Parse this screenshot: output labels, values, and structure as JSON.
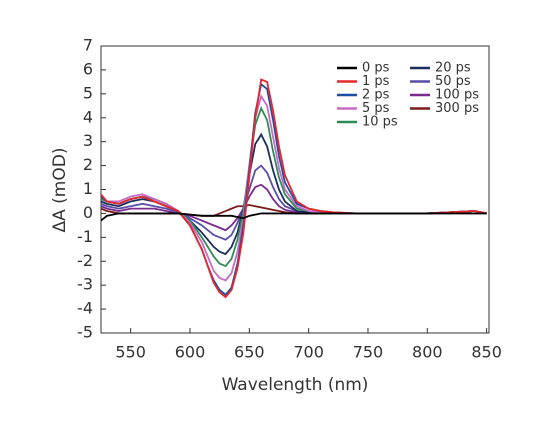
{
  "chart_data": {
    "type": "line",
    "x_label": "Wavelength (nm)",
    "y_label": "ΔA (mOD)",
    "xlim": [
      525,
      852
    ],
    "ylim": [
      -5,
      7
    ],
    "xticks": [
      550,
      600,
      650,
      700,
      750,
      800,
      850
    ],
    "yticks": [
      -5,
      -4,
      -3,
      -2,
      -1,
      0,
      1,
      2,
      3,
      4,
      5,
      6,
      7
    ],
    "legend": "upper right",
    "x": [
      525,
      530,
      540,
      550,
      560,
      570,
      580,
      590,
      600,
      610,
      615,
      620,
      625,
      630,
      635,
      640,
      645,
      650,
      655,
      660,
      665,
      670,
      675,
      680,
      690,
      700,
      710,
      720,
      740,
      760,
      780,
      800,
      820,
      840,
      850
    ],
    "series": [
      {
        "name": "0 ps",
        "color": "#000000",
        "values": [
          -0.3,
          -0.1,
          0,
          0,
          0,
          0,
          0,
          0,
          -0.05,
          -0.1,
          -0.1,
          -0.1,
          -0.1,
          -0.1,
          -0.1,
          -0.15,
          -0.2,
          -0.1,
          -0.05,
          0,
          0,
          0,
          0,
          0,
          0,
          0,
          0,
          0,
          0,
          0,
          0,
          0,
          0,
          0,
          0
        ]
      },
      {
        "name": "1 ps",
        "color": "#e8262b",
        "values": [
          0.8,
          0.5,
          0.4,
          0.6,
          0.7,
          0.5,
          0.3,
          0.1,
          -0.5,
          -1.5,
          -2.2,
          -2.9,
          -3.3,
          -3.5,
          -3.2,
          -2.3,
          -0.8,
          1.5,
          4.0,
          5.6,
          5.5,
          4.3,
          2.8,
          1.6,
          0.5,
          0.2,
          0.1,
          0.05,
          0,
          0,
          0,
          0,
          0.05,
          0.1,
          0
        ]
      },
      {
        "name": "2 ps",
        "color": "#1f4fa3",
        "values": [
          0.7,
          0.5,
          0.4,
          0.6,
          0.7,
          0.5,
          0.3,
          0.1,
          -0.5,
          -1.5,
          -2.2,
          -2.8,
          -3.2,
          -3.4,
          -3.1,
          -2.1,
          -0.5,
          1.8,
          4.2,
          5.4,
          5.2,
          3.9,
          2.4,
          1.3,
          0.4,
          0.2,
          0.1,
          0.05,
          0,
          0,
          0,
          0,
          0.05,
          0.1,
          0
        ]
      },
      {
        "name": "5 ps",
        "color": "#c86bc4",
        "values": [
          0.7,
          0.5,
          0.5,
          0.7,
          0.8,
          0.6,
          0.4,
          0.1,
          -0.4,
          -1.2,
          -1.8,
          -2.4,
          -2.7,
          -2.8,
          -2.5,
          -1.6,
          -0.2,
          2.0,
          4.0,
          4.9,
          4.5,
          3.2,
          1.9,
          1.0,
          0.3,
          0.1,
          0.05,
          0,
          0,
          0,
          0,
          0,
          0.05,
          0.1,
          0
        ]
      },
      {
        "name": "10 ps",
        "color": "#2e8b57",
        "values": [
          0.6,
          0.5,
          0.4,
          0.6,
          0.7,
          0.6,
          0.4,
          0.1,
          -0.3,
          -1.0,
          -1.4,
          -1.8,
          -2.1,
          -2.2,
          -1.9,
          -1.1,
          0.1,
          2.0,
          3.7,
          4.4,
          3.9,
          2.6,
          1.5,
          0.8,
          0.2,
          0.1,
          0,
          0,
          0,
          0,
          0,
          0,
          0.05,
          0.1,
          0
        ]
      },
      {
        "name": "20 ps",
        "color": "#1b2f5e",
        "values": [
          0.5,
          0.4,
          0.3,
          0.5,
          0.6,
          0.5,
          0.3,
          0.1,
          -0.3,
          -0.8,
          -1.1,
          -1.4,
          -1.6,
          -1.7,
          -1.4,
          -0.8,
          0.2,
          1.6,
          2.9,
          3.3,
          2.8,
          1.8,
          1.0,
          0.5,
          0.1,
          0.05,
          0,
          0,
          0,
          0,
          0,
          0,
          0.05,
          0.1,
          0
        ]
      },
      {
        "name": "50 ps",
        "color": "#5a4fa8",
        "values": [
          0.4,
          0.3,
          0.2,
          0.3,
          0.4,
          0.3,
          0.2,
          0.05,
          -0.2,
          -0.5,
          -0.7,
          -0.9,
          -1.0,
          -1.1,
          -0.9,
          -0.4,
          0.2,
          1.0,
          1.8,
          2.0,
          1.7,
          1.1,
          0.6,
          0.3,
          0.1,
          0,
          0,
          0,
          0,
          0,
          0,
          0,
          0.05,
          0.1,
          0
        ]
      },
      {
        "name": "100 ps",
        "color": "#7b2a8f",
        "values": [
          0.3,
          0.2,
          0.1,
          0.2,
          0.2,
          0.2,
          0.1,
          0,
          -0.1,
          -0.3,
          -0.4,
          -0.5,
          -0.6,
          -0.7,
          -0.5,
          -0.2,
          0.2,
          0.7,
          1.1,
          1.2,
          1.0,
          0.6,
          0.3,
          0.15,
          0.05,
          0,
          0,
          0,
          0,
          0,
          0,
          0,
          0.05,
          0.1,
          0
        ]
      },
      {
        "name": "300 ps",
        "color": "#7a1c1c",
        "values": [
          0.2,
          0.1,
          0,
          0,
          0,
          0,
          0,
          0,
          -0.05,
          -0.1,
          -0.1,
          -0.1,
          0,
          0.1,
          0.2,
          0.3,
          0.3,
          0.35,
          0.3,
          0.25,
          0.2,
          0.15,
          0.1,
          0.05,
          0,
          0,
          0,
          0,
          0,
          0,
          0,
          0,
          0.05,
          0.1,
          0
        ]
      }
    ]
  }
}
